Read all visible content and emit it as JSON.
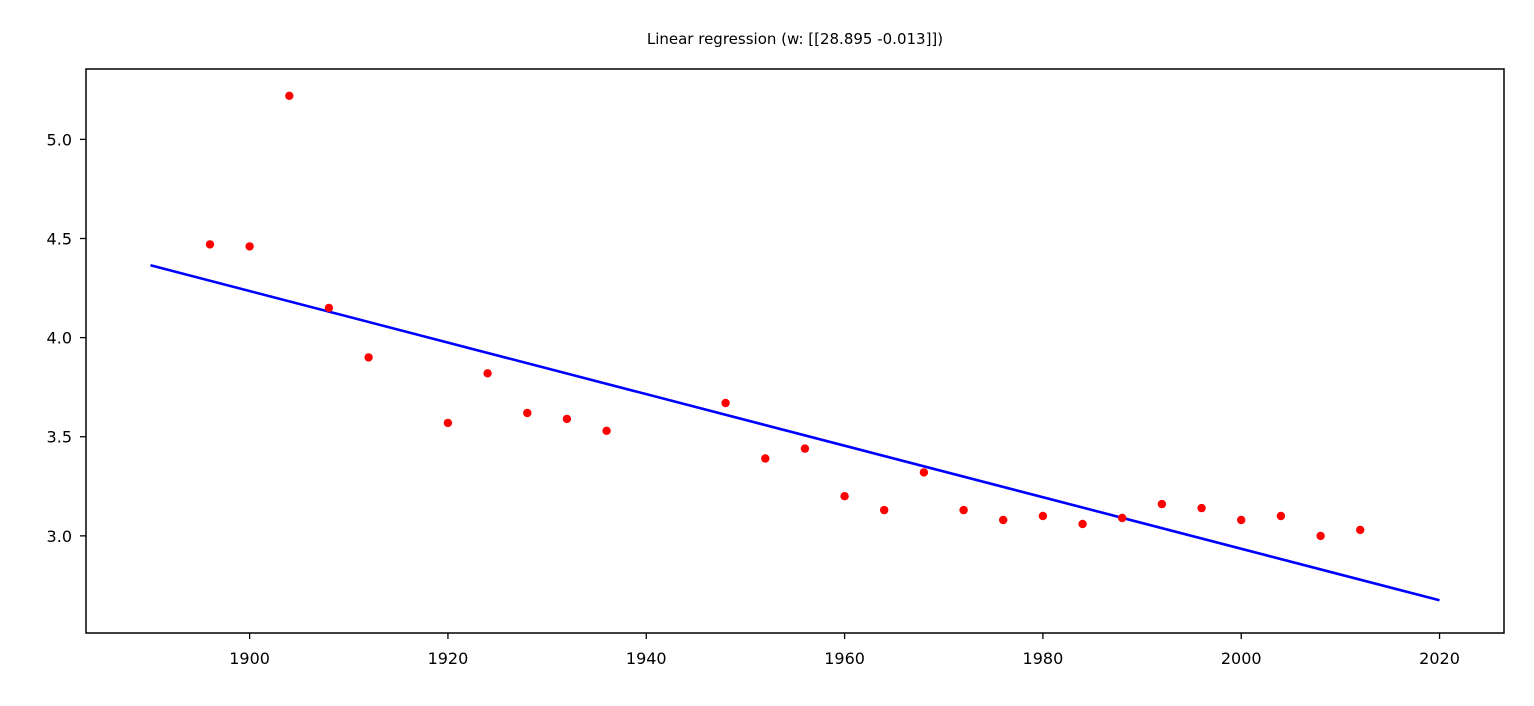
{
  "chart_data": {
    "type": "scatter",
    "title": "Linear regression (w: [[28.895 -0.013]])",
    "xlabel": "",
    "ylabel": "",
    "xlim": [
      1883.5,
      2026.5
    ],
    "ylim": [
      2.51,
      5.355
    ],
    "xticks": [
      1900,
      1920,
      1940,
      1960,
      1980,
      2000,
      2020
    ],
    "yticks": [
      3.0,
      3.5,
      4.0,
      4.5,
      5.0
    ],
    "grid": false,
    "series": [
      {
        "type": "scatter",
        "color": "#ff0000",
        "x": [
          1896,
          1900,
          1904,
          1908,
          1912,
          1920,
          1924,
          1928,
          1932,
          1936,
          1948,
          1952,
          1956,
          1960,
          1964,
          1968,
          1972,
          1976,
          1980,
          1984,
          1988,
          1992,
          1996,
          2000,
          2004,
          2008,
          2012
        ],
        "y": [
          4.47,
          4.46,
          5.22,
          4.15,
          3.9,
          3.57,
          3.82,
          3.62,
          3.59,
          3.53,
          3.67,
          3.39,
          3.44,
          3.2,
          3.13,
          3.32,
          3.13,
          3.08,
          3.1,
          3.06,
          3.09,
          3.16,
          3.14,
          3.08,
          3.1,
          3.0,
          3.03
        ]
      },
      {
        "type": "line",
        "color": "#0000ff",
        "x": [
          1890,
          2020
        ],
        "y": [
          4.365,
          2.675
        ]
      }
    ]
  }
}
